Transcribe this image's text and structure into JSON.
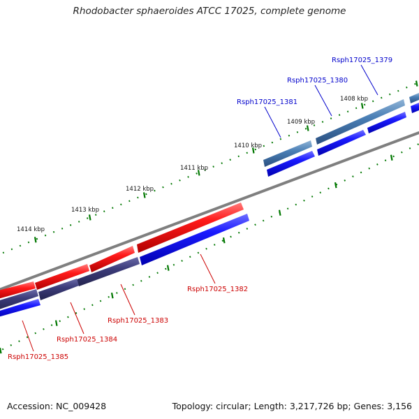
{
  "title": "Rhodobacter sphaeroides ATCC 17025, complete genome",
  "footer": {
    "accession": "Accession: NC_009428",
    "summary": "Topology: circular; Length: 3,217,726 bp; Genes: 3,156"
  },
  "colors": {
    "forward_gene": "#0000ee",
    "reverse_gene": "#ee0000",
    "forward_label": "#0000cc",
    "reverse_label": "#cc0000",
    "ticks": "#007700",
    "backbone": "#808080",
    "cds_highlight": "#4a7fb5",
    "cds_dark": "#3c3c7a"
  },
  "kbp_ticks": [
    "1408 kbp",
    "1409 kbp",
    "1410 kbp",
    "1411 kbp",
    "1412 kbp",
    "1413 kbp",
    "1414 kbp"
  ],
  "genes": [
    {
      "name": "Rsph17025_1379",
      "strand": "forward"
    },
    {
      "name": "Rsph17025_1380",
      "strand": "forward"
    },
    {
      "name": "Rsph17025_1381",
      "strand": "forward"
    },
    {
      "name": "Rsph17025_1382",
      "strand": "reverse"
    },
    {
      "name": "Rsph17025_1383",
      "strand": "reverse"
    },
    {
      "name": "Rsph17025_1384",
      "strand": "reverse"
    },
    {
      "name": "Rsph17025_1385",
      "strand": "reverse"
    }
  ]
}
